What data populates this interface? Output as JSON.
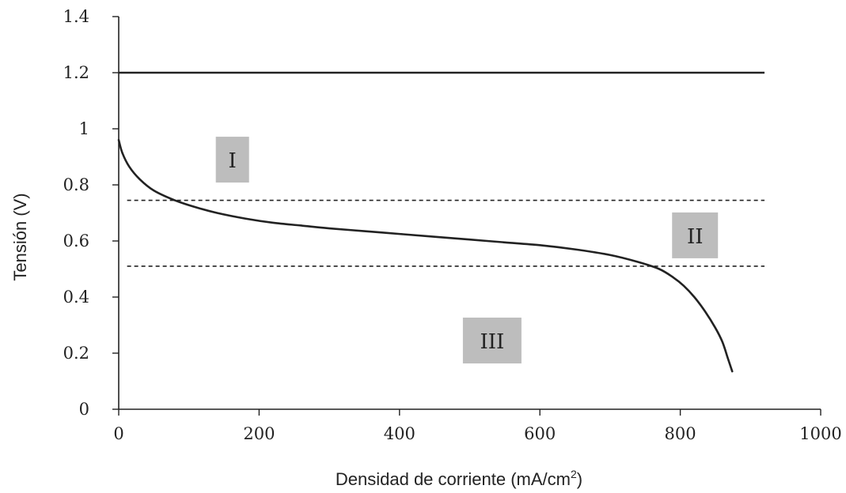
{
  "chart_data": {
    "type": "line",
    "xlabel": "Densidad de corriente (mA/cm",
    "xlabel_superscript": "2",
    "xlabel_suffix": ")",
    "ylabel": "Tensión (V)",
    "xlim": [
      0,
      1000
    ],
    "ylim": [
      0,
      1.4
    ],
    "x_ticks": [
      "0",
      "200",
      "400",
      "600",
      "800",
      "1000"
    ],
    "y_ticks": [
      "0",
      "0.2",
      "0.4",
      "0.6",
      "0.8",
      "1",
      "1.2",
      "1.4"
    ],
    "x_tick_values": [
      0,
      200,
      400,
      600,
      800,
      1000
    ],
    "y_tick_values": [
      0,
      0.2,
      0.4,
      0.6,
      0.8,
      1.0,
      1.2,
      1.4
    ],
    "grid": false,
    "reference_lines": [
      {
        "y": 1.2,
        "x_range": [
          0,
          920
        ],
        "style": "solid"
      },
      {
        "y": 0.745,
        "x_range": [
          12,
          920
        ],
        "style": "dashed"
      },
      {
        "y": 0.51,
        "x_range": [
          12,
          920
        ],
        "style": "dashed"
      }
    ],
    "series": [
      {
        "x": [
          0,
          5,
          15,
          30,
          50,
          80,
          110,
          140,
          180,
          220,
          260,
          300,
          350,
          400,
          450,
          500,
          550,
          600,
          650,
          700,
          740,
          770,
          790,
          805,
          820,
          835,
          850,
          860,
          868,
          874
        ],
        "y": [
          0.96,
          0.915,
          0.865,
          0.82,
          0.78,
          0.745,
          0.72,
          0.7,
          0.68,
          0.665,
          0.655,
          0.645,
          0.635,
          0.625,
          0.615,
          0.605,
          0.595,
          0.585,
          0.57,
          0.55,
          0.525,
          0.5,
          0.47,
          0.44,
          0.4,
          0.35,
          0.29,
          0.24,
          0.18,
          0.135
        ]
      }
    ],
    "region_labels": [
      {
        "text": "I",
        "x": 162,
        "y": 0.89
      },
      {
        "text": "II",
        "x": 821,
        "y": 0.62
      },
      {
        "text": "III",
        "x": 532,
        "y": 0.245
      }
    ]
  }
}
